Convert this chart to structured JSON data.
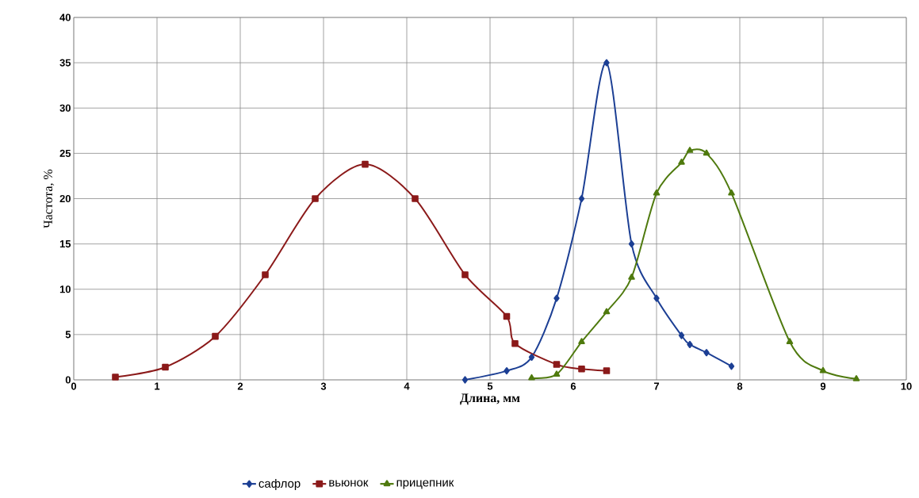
{
  "chart_data": {
    "type": "line",
    "xlabel": "Длина, мм",
    "ylabel": "Частота, %",
    "xlim": [
      0,
      10
    ],
    "ylim": [
      0,
      40
    ],
    "xticks": [
      0,
      1,
      2,
      3,
      4,
      5,
      6,
      7,
      8,
      9,
      10
    ],
    "yticks": [
      0,
      5,
      10,
      15,
      20,
      25,
      30,
      35,
      40
    ],
    "grid": true,
    "legend": "bottom",
    "line_style": "solid",
    "series": [
      {
        "name": "сафлор",
        "color": "#1c3f94",
        "marker": "diamond",
        "x": [
          4.7,
          5.2,
          5.5,
          5.8,
          6.1,
          6.4,
          6.7,
          7.0,
          7.3,
          7.4,
          7.6,
          7.9
        ],
        "values": [
          0,
          1,
          2.5,
          9,
          20,
          35,
          15,
          9,
          4.9,
          3.9,
          3,
          1.5
        ]
      },
      {
        "name": "вьюнок",
        "color": "#8b1a1a",
        "marker": "square",
        "x": [
          0.5,
          1.1,
          1.7,
          2.3,
          2.9,
          3.5,
          4.1,
          4.7,
          5.2,
          5.3,
          5.8,
          6.1,
          6.4
        ],
        "values": [
          0.3,
          1.4,
          4.8,
          11.6,
          20,
          23.8,
          20,
          11.6,
          7,
          4,
          1.7,
          1.2,
          1.0
        ]
      },
      {
        "name": "прицепник",
        "color": "#4f7a0e",
        "marker": "triangle",
        "x": [
          5.5,
          5.8,
          6.1,
          6.4,
          6.7,
          7.0,
          7.3,
          7.4,
          7.6,
          7.9,
          8.6,
          9.0,
          9.4
        ],
        "values": [
          0.2,
          0.6,
          4.2,
          7.5,
          11.3,
          20.6,
          24,
          25.3,
          25,
          20.6,
          4.2,
          1,
          0.1
        ]
      }
    ]
  }
}
